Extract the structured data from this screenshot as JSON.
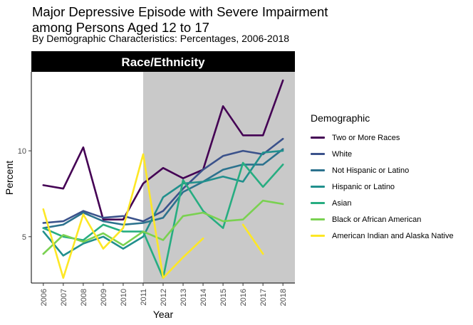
{
  "title": "Major Depressive Episode with Severe Impairment\namong Persons Aged 12 to 17",
  "subtitle": "By Demographic Characteristics: Percentages, 2006-2018",
  "chart_data": {
    "type": "line",
    "panel_title": "Race/Ethnicity",
    "xlabel": "Year",
    "ylabel": "Percent",
    "x": [
      2006,
      2007,
      2008,
      2009,
      2010,
      2011,
      2012,
      2013,
      2014,
      2015,
      2016,
      2017,
      2018
    ],
    "xticks": [
      "2006",
      "2007",
      "2008",
      "2009",
      "2010",
      "2011",
      "2012",
      "2013",
      "2014",
      "2015",
      "2016",
      "2017",
      "2018"
    ],
    "yticks": [
      5,
      10
    ],
    "ylim": [
      2.3,
      14.6
    ],
    "shaded_region": [
      2011,
      2018
    ],
    "grid": false,
    "legend_title": "Demographic",
    "legend_position": "right",
    "series": [
      {
        "name": "Two or More Races",
        "color": "#440154",
        "values": [
          8.0,
          7.8,
          10.2,
          6.0,
          6.0,
          8.1,
          9.0,
          8.4,
          8.9,
          12.6,
          10.9,
          10.9,
          14.1
        ]
      },
      {
        "name": "White",
        "color": "#3b528b",
        "values": [
          5.8,
          5.9,
          6.5,
          6.1,
          6.2,
          5.9,
          6.5,
          7.8,
          8.9,
          9.7,
          10.0,
          9.8,
          10.7
        ]
      },
      {
        "name": "Not Hispanic or Latino",
        "color": "#2c728e",
        "values": [
          5.5,
          5.7,
          6.4,
          5.9,
          5.7,
          5.8,
          6.1,
          7.6,
          8.2,
          8.9,
          9.2,
          9.2,
          10.1
        ]
      },
      {
        "name": "Hispanic or Latino",
        "color": "#21908d",
        "values": [
          5.3,
          3.9,
          4.6,
          5.0,
          4.3,
          5.0,
          7.3,
          8.1,
          8.2,
          8.5,
          8.2,
          9.9,
          10.0
        ]
      },
      {
        "name": "Asian",
        "color": "#27ad81",
        "values": [
          5.5,
          5.0,
          4.8,
          5.7,
          5.3,
          5.3,
          2.6,
          8.3,
          6.5,
          5.5,
          9.3,
          7.9,
          9.2
        ]
      },
      {
        "name": "Black or African American",
        "color": "#7ad151",
        "values": [
          4.0,
          5.1,
          4.7,
          5.2,
          4.5,
          5.3,
          4.8,
          6.2,
          6.4,
          5.9,
          6.0,
          7.1,
          6.9
        ]
      },
      {
        "name": "American Indian and Alaska Native",
        "color": "#fde725",
        "values": [
          6.6,
          2.6,
          6.3,
          4.3,
          5.5,
          9.8,
          2.6,
          3.8,
          4.9,
          null,
          5.7,
          4.0,
          null
        ]
      }
    ]
  }
}
